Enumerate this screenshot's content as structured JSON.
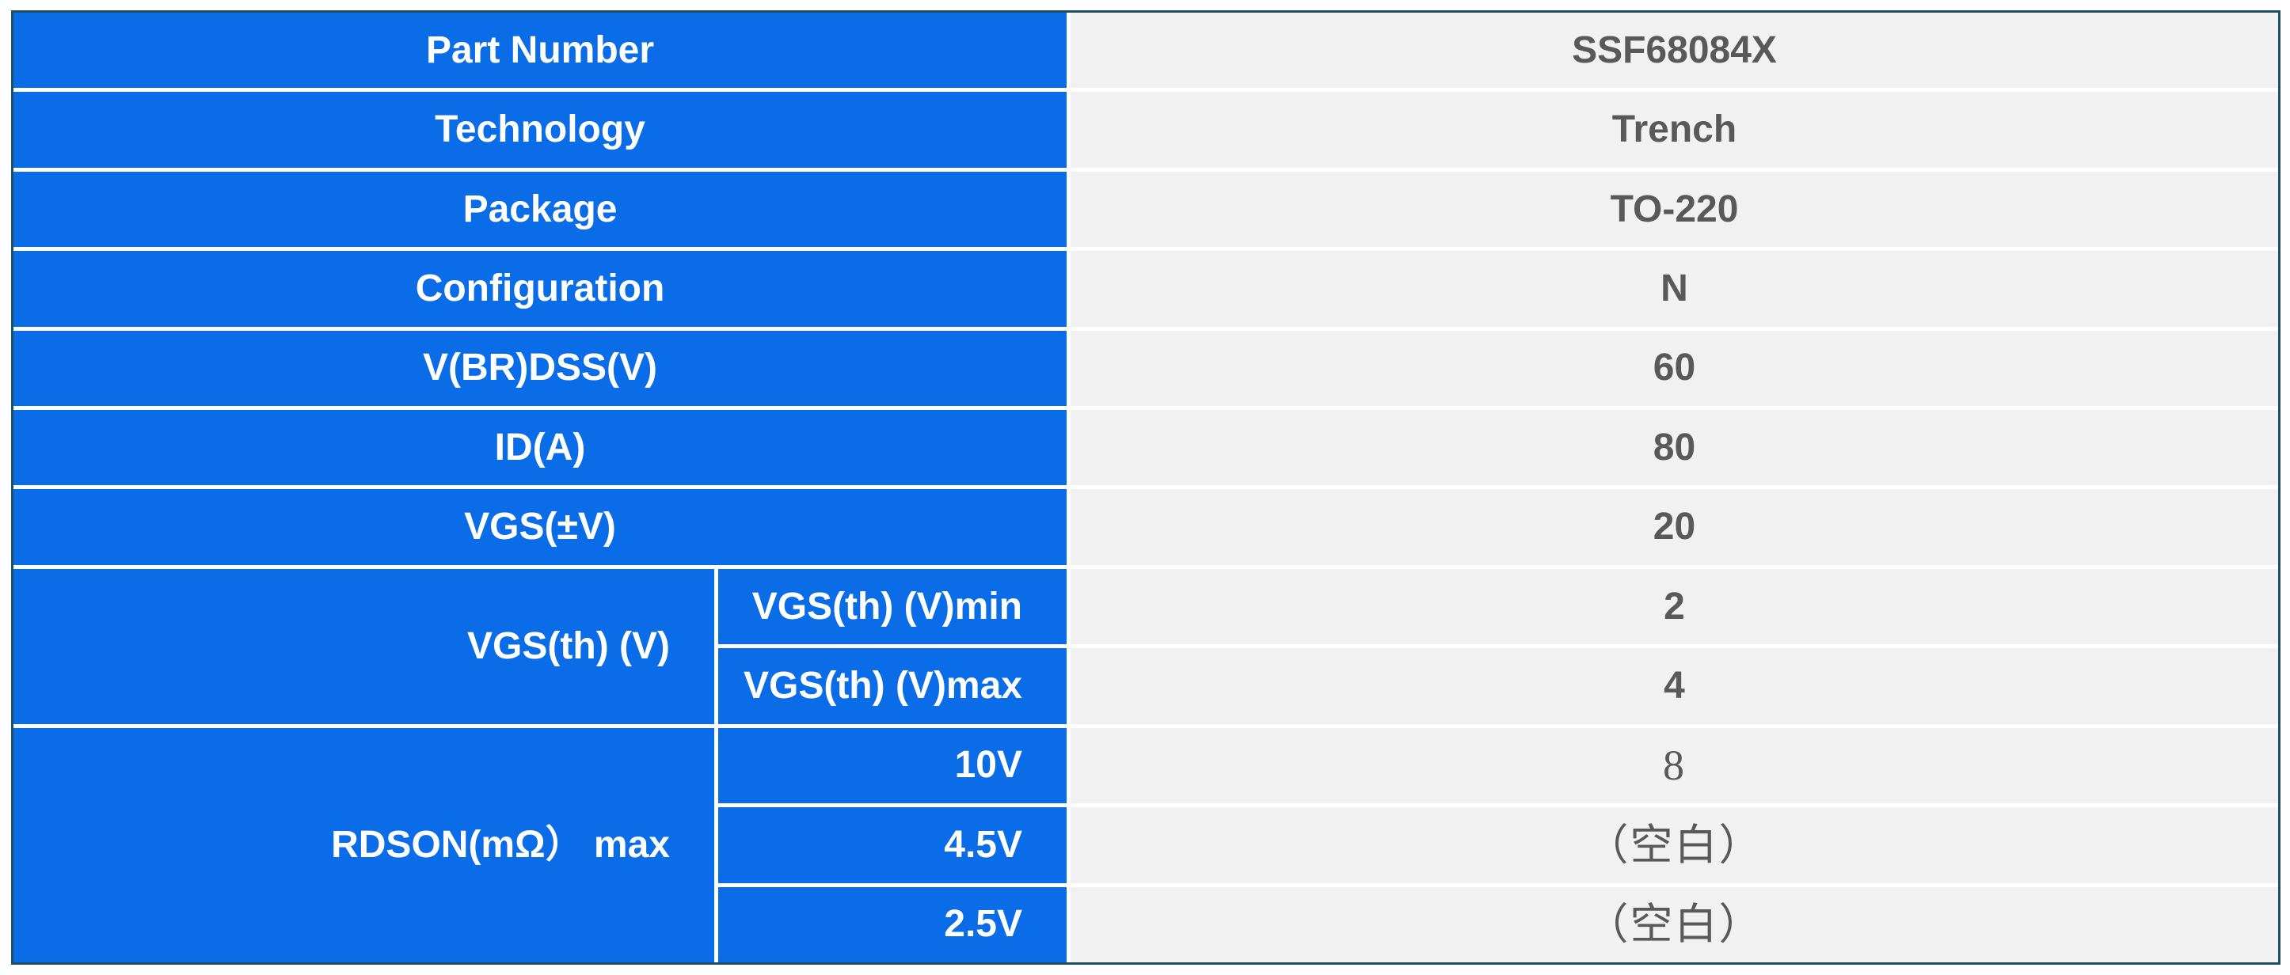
{
  "table": {
    "colors": {
      "cell_blue": "#0a6ce6",
      "cell_gray": "#f1f1f1",
      "border_navy": "#1f4f66",
      "label_text": "#ffffff",
      "value_text": "#595959",
      "separator": "#ffffff"
    },
    "simple_rows": [
      {
        "label": "Part Number",
        "value": "SSF68084X"
      },
      {
        "label": "Technology",
        "value": "Trench"
      },
      {
        "label": "Package",
        "value": "TO-220"
      },
      {
        "label": "Configuration",
        "value": "N"
      },
      {
        "label": "V(BR)DSS(V)",
        "value": "60"
      },
      {
        "label": "ID(A)",
        "value": "80"
      },
      {
        "label": "VGS(±V)",
        "value": "20"
      }
    ],
    "vgs_group": {
      "label": "VGS(th) (V)",
      "rows": [
        {
          "label": "VGS(th) (V)min",
          "value": "2"
        },
        {
          "label": "VGS(th) (V)max",
          "value": "4"
        }
      ]
    },
    "rdson_group": {
      "label": "RDSON(mΩ） max",
      "rows": [
        {
          "label": "10V",
          "value": "8"
        },
        {
          "label": "4.5V",
          "value": "（空白）"
        },
        {
          "label": "2.5V",
          "value": "（空白）"
        }
      ]
    }
  }
}
